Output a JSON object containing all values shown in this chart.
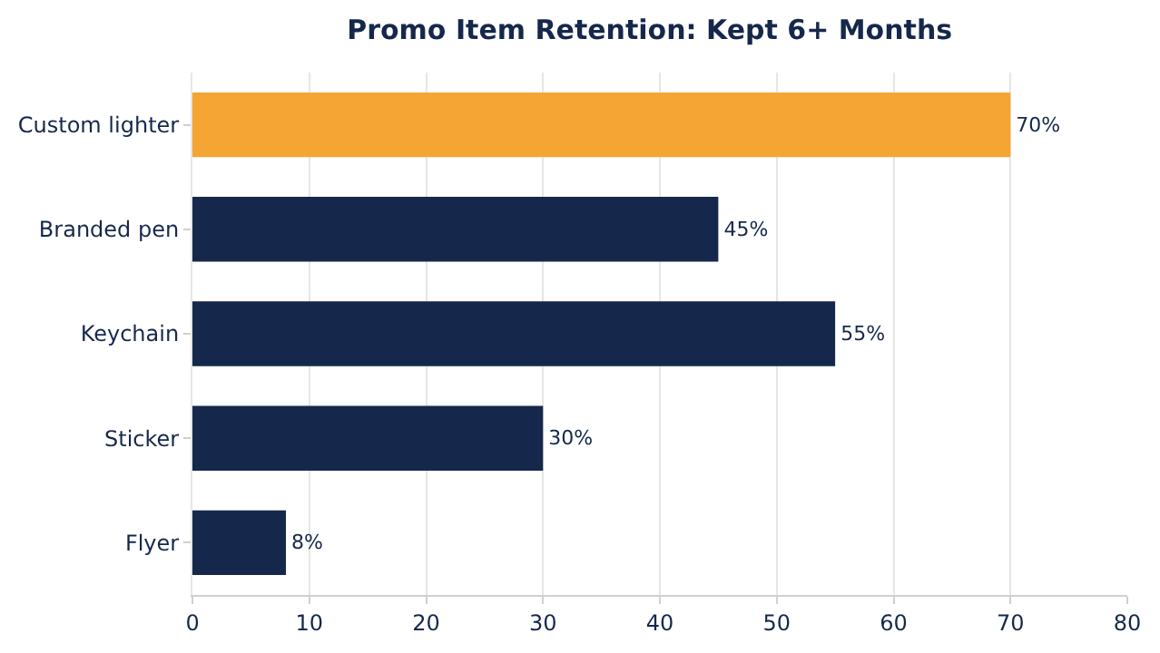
{
  "chart_data": {
    "type": "bar",
    "orientation": "horizontal",
    "title": "Promo Item Retention: Kept 6+ Months",
    "categories": [
      "Custom lighter",
      "Branded pen",
      "Keychain",
      "Sticker",
      "Flyer"
    ],
    "values": [
      70,
      45,
      55,
      30,
      8
    ],
    "colors": [
      "#f4a533",
      "#15284b",
      "#15284b",
      "#15284b",
      "#15284b"
    ],
    "value_labels": [
      "70%",
      "45%",
      "55%",
      "30%",
      "8%"
    ],
    "xlim": [
      0,
      80
    ],
    "xticks": [
      0,
      10,
      20,
      30,
      40,
      50,
      60,
      70,
      80
    ],
    "grid": "x",
    "legend": false
  }
}
